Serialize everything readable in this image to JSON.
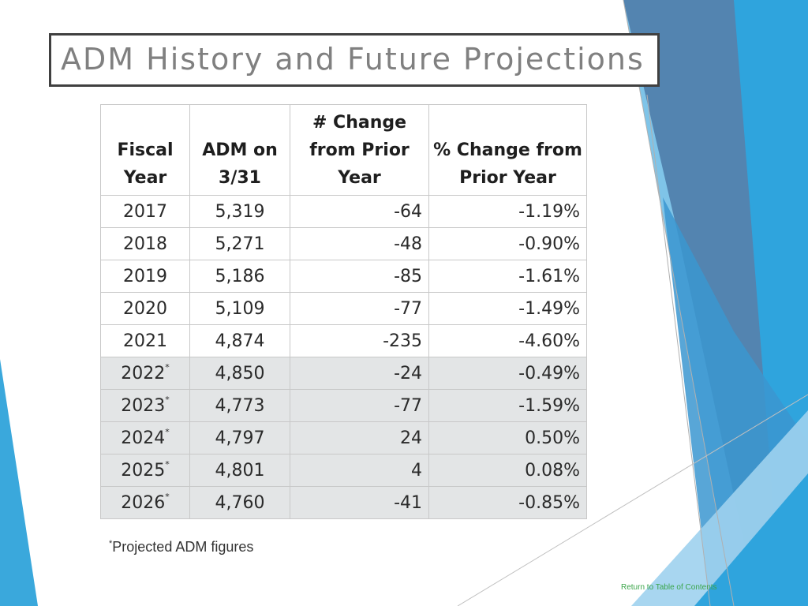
{
  "title": "ADM History and Future Projections",
  "table": {
    "headers": [
      [
        "Fiscal",
        "Year"
      ],
      [
        "ADM on",
        "3/31"
      ],
      [
        "# Change",
        "from Prior",
        "Year"
      ],
      [
        "% Change from",
        "Prior Year"
      ]
    ],
    "rows": [
      {
        "year": "2017",
        "proj": "",
        "adm": "5,319",
        "change": "-64",
        "pct": "-1.19%"
      },
      {
        "year": "2018",
        "proj": "",
        "adm": "5,271",
        "change": "-48",
        "pct": "-0.90%"
      },
      {
        "year": "2019",
        "proj": "",
        "adm": "5,186",
        "change": "-85",
        "pct": "-1.61%"
      },
      {
        "year": "2020",
        "proj": "",
        "adm": "5,109",
        "change": "-77",
        "pct": "-1.49%"
      },
      {
        "year": "2021",
        "proj": "",
        "adm": "4,874",
        "change": "-235",
        "pct": "-4.60%"
      },
      {
        "year": "2022",
        "proj": "*",
        "adm": "4,850",
        "change": "-24",
        "pct": "-0.49%"
      },
      {
        "year": "2023",
        "proj": "*",
        "adm": "4,773",
        "change": "-77",
        "pct": "-1.59%"
      },
      {
        "year": "2024",
        "proj": "*",
        "adm": "4,797",
        "change": "24",
        "pct": "0.50%"
      },
      {
        "year": "2025",
        "proj": "*",
        "adm": "4,801",
        "change": "4",
        "pct": "0.08%"
      },
      {
        "year": "2026",
        "proj": "*",
        "adm": "4,760",
        "change": "-41",
        "pct": "-0.85%"
      }
    ]
  },
  "footnote": {
    "marker": "*",
    "text": "Projected ADM figures"
  },
  "back_link": "Return to Table of Contents",
  "colors": {
    "highlight_row": "#e3e5e6",
    "blue_light": "#9fd2ee",
    "blue_mid": "#3aa8dc",
    "blue_dark": "#5384b0"
  }
}
